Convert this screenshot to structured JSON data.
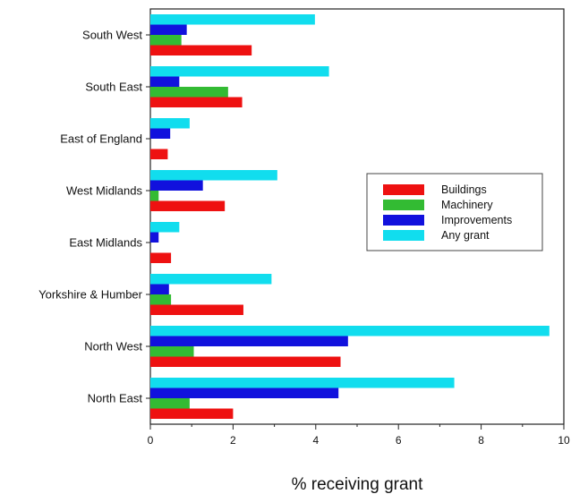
{
  "chart_data": {
    "type": "bar",
    "orientation": "horizontal",
    "categories": [
      "North East",
      "North West",
      "Yorkshire & Humber",
      "East Midlands",
      "West Midlands",
      "East of England",
      "South East",
      "South West"
    ],
    "series": [
      {
        "name": "Buildings",
        "color": "#ee1111",
        "values": [
          2.0,
          4.6,
          2.25,
          0.5,
          1.8,
          0.42,
          2.22,
          2.45
        ]
      },
      {
        "name": "Machinery",
        "color": "#33bb33",
        "values": [
          0.95,
          1.05,
          0.5,
          0.0,
          0.2,
          0.0,
          1.88,
          0.75
        ]
      },
      {
        "name": "Improvements",
        "color": "#1111dd",
        "values": [
          4.55,
          4.78,
          0.45,
          0.2,
          1.27,
          0.48,
          0.7,
          0.88
        ]
      },
      {
        "name": "Any grant",
        "color": "#11ddee",
        "values": [
          7.35,
          9.65,
          2.93,
          0.7,
          3.07,
          0.95,
          4.32,
          3.98
        ]
      }
    ],
    "xlabel": "% receiving grant",
    "ylabel": "",
    "title": "",
    "xlim": [
      0,
      10
    ],
    "xticks": [
      "0",
      "2",
      "4",
      "6",
      "8",
      "10"
    ],
    "legend_position": "right-center",
    "grid": false
  }
}
